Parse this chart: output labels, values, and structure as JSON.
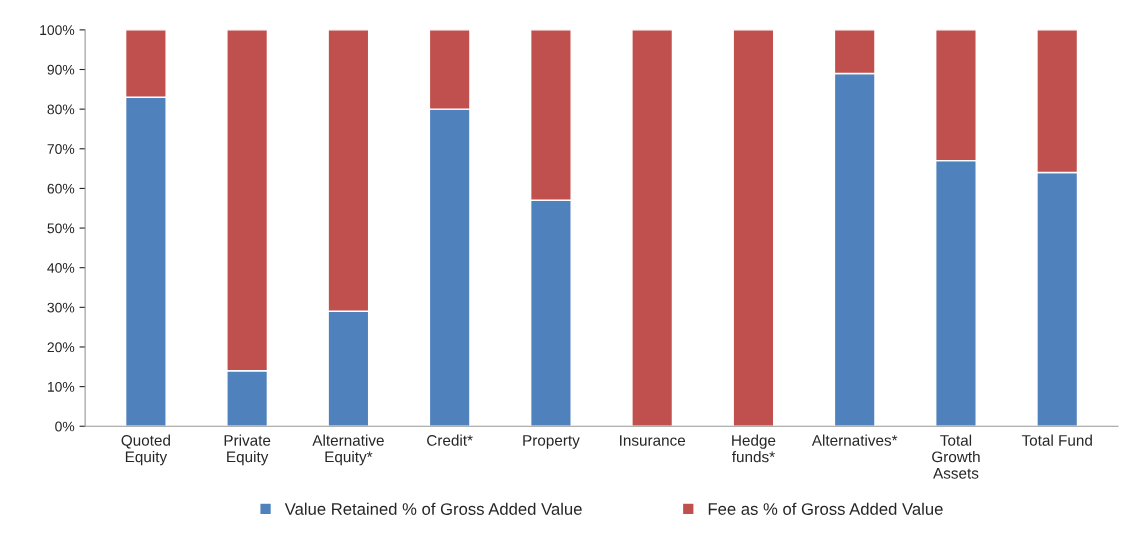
{
  "chart_data": {
    "type": "bar",
    "stacked": true,
    "categories": [
      "Quoted\nEquity",
      "Private\nEquity",
      "Alternative\nEquity*",
      "Credit*",
      "Property",
      "Insurance",
      "Hedge\nfunds*",
      "Alternatives*",
      "Total\nGrowth\nAssets",
      "Total Fund"
    ],
    "series": [
      {
        "name": "Value Retained % of Gross Added Value",
        "color": "#4f81bd",
        "values": [
          83,
          14,
          29,
          80,
          57,
          0,
          0,
          89,
          67,
          64
        ]
      },
      {
        "name": "Fee as % of Gross Added Value",
        "color": "#c0504d",
        "values": [
          17,
          86,
          71,
          20,
          43,
          100,
          100,
          11,
          33,
          36
        ]
      }
    ],
    "ylim": [
      0,
      100
    ],
    "yticks": [
      {
        "value": 0,
        "label": "0%"
      },
      {
        "value": 10,
        "label": "10%"
      },
      {
        "value": 20,
        "label": "20%"
      },
      {
        "value": 30,
        "label": "30%"
      },
      {
        "value": 40,
        "label": "40%"
      },
      {
        "value": 50,
        "label": "50%"
      },
      {
        "value": 60,
        "label": "60%"
      },
      {
        "value": 70,
        "label": "70%"
      },
      {
        "value": 80,
        "label": "80%"
      },
      {
        "value": 90,
        "label": "90%"
      },
      {
        "value": 100,
        "label": "100%"
      }
    ],
    "grid": false,
    "legend": "bottom"
  }
}
